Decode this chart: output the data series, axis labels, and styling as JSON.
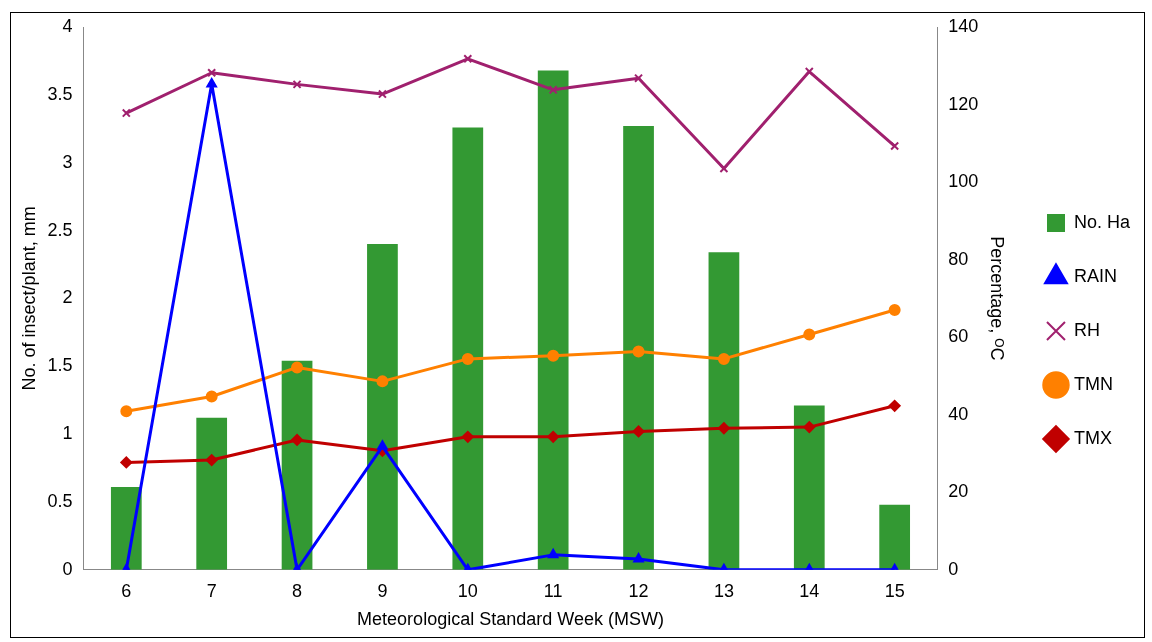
{
  "chart_data": {
    "type": "bar",
    "xlabel": "Meteorological Standard Week (MSW)",
    "ylabel": "No. of insect/plant, mm",
    "y2label": "Percentage, ᴼC",
    "categories": [
      "6",
      "7",
      "8",
      "9",
      "10",
      "11",
      "12",
      "13",
      "14",
      "15"
    ],
    "series": [
      {
        "name": "No. Ha",
        "color": "#339933",
        "values": [
          0.61,
          1.12,
          1.54,
          2.4,
          3.26,
          3.68,
          3.27,
          2.34,
          1.21,
          0.48
        ]
      },
      {
        "name": "RAIN",
        "type": "line",
        "color": "#0000ff",
        "marker": "triangle",
        "values": [
          0,
          3.58,
          0,
          0.91,
          0,
          0.11,
          0.08,
          0,
          0,
          0
        ]
      },
      {
        "name": "RH",
        "type": "line",
        "axis": "y2",
        "color": "#a0206e",
        "marker": "cross",
        "values": [
          117.8,
          128.2,
          125.2,
          122.7,
          131.8,
          123.8,
          126.8,
          103.5,
          128.5,
          109.3
        ]
      },
      {
        "name": "TMN",
        "type": "line",
        "axis": "y2",
        "color": "#ff8000",
        "marker": "circle",
        "values": [
          40.9,
          44.7,
          52.2,
          48.6,
          54.4,
          55.2,
          56.3,
          54.4,
          60.7,
          67.0
        ]
      },
      {
        "name": "TMX",
        "type": "line",
        "axis": "y2",
        "color": "#c00000",
        "marker": "diamond",
        "values": [
          27.7,
          28.3,
          33.5,
          30.7,
          34.3,
          34.3,
          35.7,
          36.5,
          36.8,
          42.3
        ]
      }
    ],
    "ylim": [
      0,
      4
    ],
    "yticks": [
      0,
      0.5,
      1,
      1.5,
      2,
      2.5,
      3,
      3.5,
      4
    ],
    "y2lim": [
      0,
      140
    ],
    "y2ticks": [
      0,
      20,
      40,
      60,
      80,
      100,
      120,
      140
    ],
    "grid": false,
    "legend": "right"
  }
}
